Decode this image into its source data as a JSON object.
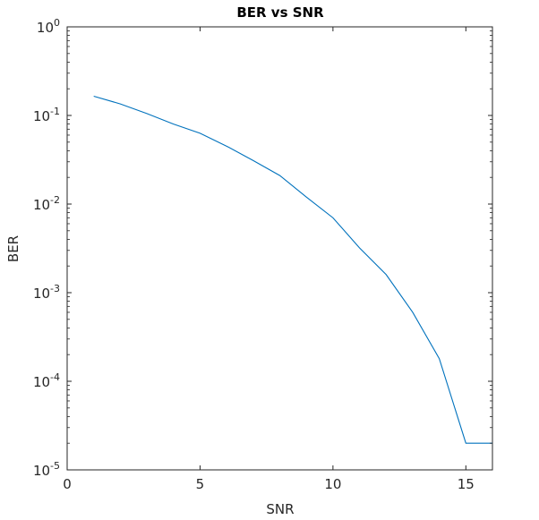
{
  "chart_data": {
    "type": "line",
    "title": "BER vs SNR",
    "xlabel": "SNR",
    "ylabel": "BER",
    "xlim": [
      0,
      16
    ],
    "ylim": [
      1e-05,
      1
    ],
    "yscale": "log",
    "grid": false,
    "x_ticks": [
      0,
      5,
      10,
      15
    ],
    "y_tick_exponents": [
      0,
      -1,
      -2,
      -3,
      -4,
      -5
    ],
    "y_tick_base": "10",
    "series": [
      {
        "color": "#0072bd",
        "x": [
          1,
          2,
          3,
          4,
          5,
          6,
          7,
          8,
          9,
          10,
          11,
          12,
          13,
          14,
          15,
          16
        ],
        "values": [
          0.165,
          0.135,
          0.105,
          0.08,
          0.063,
          0.045,
          0.031,
          0.021,
          0.012,
          0.007,
          0.0032,
          0.0016,
          0.0006,
          0.00018,
          2e-05,
          2e-05
        ]
      }
    ]
  }
}
